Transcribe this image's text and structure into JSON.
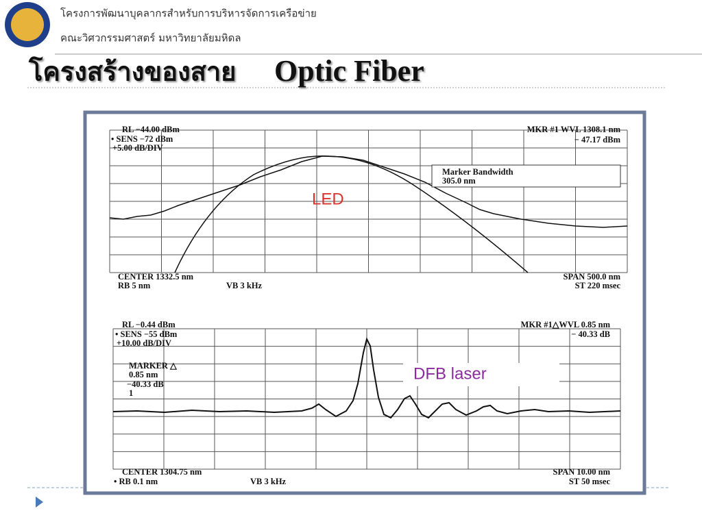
{
  "header": {
    "line1": "โครงการพัฒนาบุคลากรสำหรับการบริหารจัดการเครือข่าย",
    "line2": "คณะวิศวกรรมศาสตร์ มหาวิทยาลัยมหิดล"
  },
  "title": {
    "thai": "โครงสร้างของสาย",
    "english": "Optic Fiber"
  },
  "led_panel": {
    "top_left": [
      "RL −44.00 dBm",
      "• SENS −72 dBm",
      "+5.00 dB/DIV"
    ],
    "top_right": [
      "MKR #1 WVL 1308.1 nm",
      "− 47.17 dBm"
    ],
    "marker_box": [
      "Marker Bandwidth",
      "305.0 nm"
    ],
    "label": "LED",
    "bottom_left": [
      "CENTER 1332.5 nm",
      "RB 5 nm",
      "VB 3 kHz"
    ],
    "bottom_right": [
      "SPAN 500.0 nm",
      "ST 220 msec"
    ]
  },
  "dfb_panel": {
    "top_left": [
      "RL −0.44 dBm",
      "• SENS −55 dBm",
      "+10.00 dB/DIV"
    ],
    "marker": [
      "MARKER △",
      "0.85 nm",
      "−40.33 dB",
      "1"
    ],
    "top_right": [
      "MKR #1△WVL 0.85 nm",
      "− 40.33 dB"
    ],
    "label": "DFB laser",
    "bottom_left": [
      "CENTER 1304.75 nm",
      "• RB 0.1 nm",
      "VB 3 kHz"
    ],
    "bottom_right": [
      "SPAN 10.00 nm",
      "ST 50 msec"
    ]
  }
}
